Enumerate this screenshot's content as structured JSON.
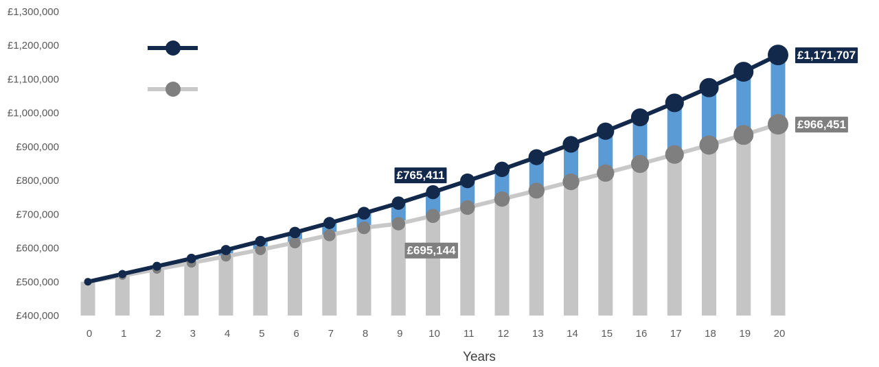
{
  "chart_data": {
    "type": "line",
    "xlabel": "Years",
    "ylabel": "",
    "title": "",
    "ylim": [
      400000,
      1300000
    ],
    "yticks": [
      400000,
      500000,
      600000,
      700000,
      800000,
      900000,
      1000000,
      1100000,
      1200000,
      1300000
    ],
    "ytick_labels": [
      "£400,000",
      "£500,000",
      "£600,000",
      "£700,000",
      "£800,000",
      "£900,000",
      "£1,000,000",
      "£1,100,000",
      "£1,200,000",
      "£1,300,000"
    ],
    "x": [
      0,
      1,
      2,
      3,
      4,
      5,
      6,
      7,
      8,
      9,
      10,
      11,
      12,
      13,
      14,
      15,
      16,
      17,
      18,
      19,
      20
    ],
    "series": [
      {
        "color": "#13294b",
        "values": [
          500000,
          523000,
          546000,
          569000,
          594000,
          620000,
          646000,
          674000,
          703000,
          733000,
          765411,
          799000,
          833000,
          869000,
          907000,
          946000,
          987000,
          1030000,
          1075000,
          1122000,
          1171707
        ]
      },
      {
        "color": "#7f7f7f",
        "line_color": "#c8c8c8",
        "values": [
          500000,
          518000,
          537000,
          556000,
          575000,
          595000,
          616000,
          638000,
          660000,
          672000,
          695144,
          720000,
          745000,
          770000,
          796000,
          822000,
          849000,
          877000,
          905000,
          935000,
          966451
        ]
      }
    ],
    "bars_color": "#c6c5c5",
    "difference_fill_color": "#5b9bd5",
    "annotations": [
      {
        "label": "£765,411",
        "series": 0,
        "x": 10,
        "bg": "#13294b"
      },
      {
        "label": "£695,144",
        "series": 1,
        "x": 10,
        "bg": "#7f7f7f"
      },
      {
        "label": "£1,171,707",
        "series": 0,
        "x": 20,
        "bg": "#13294b"
      },
      {
        "label": "£966,451",
        "series": 1,
        "x": 20,
        "bg": "#7f7f7f"
      }
    ],
    "legend": {
      "placement": "top-left",
      "labels": [
        "",
        ""
      ]
    },
    "grid": false
  }
}
